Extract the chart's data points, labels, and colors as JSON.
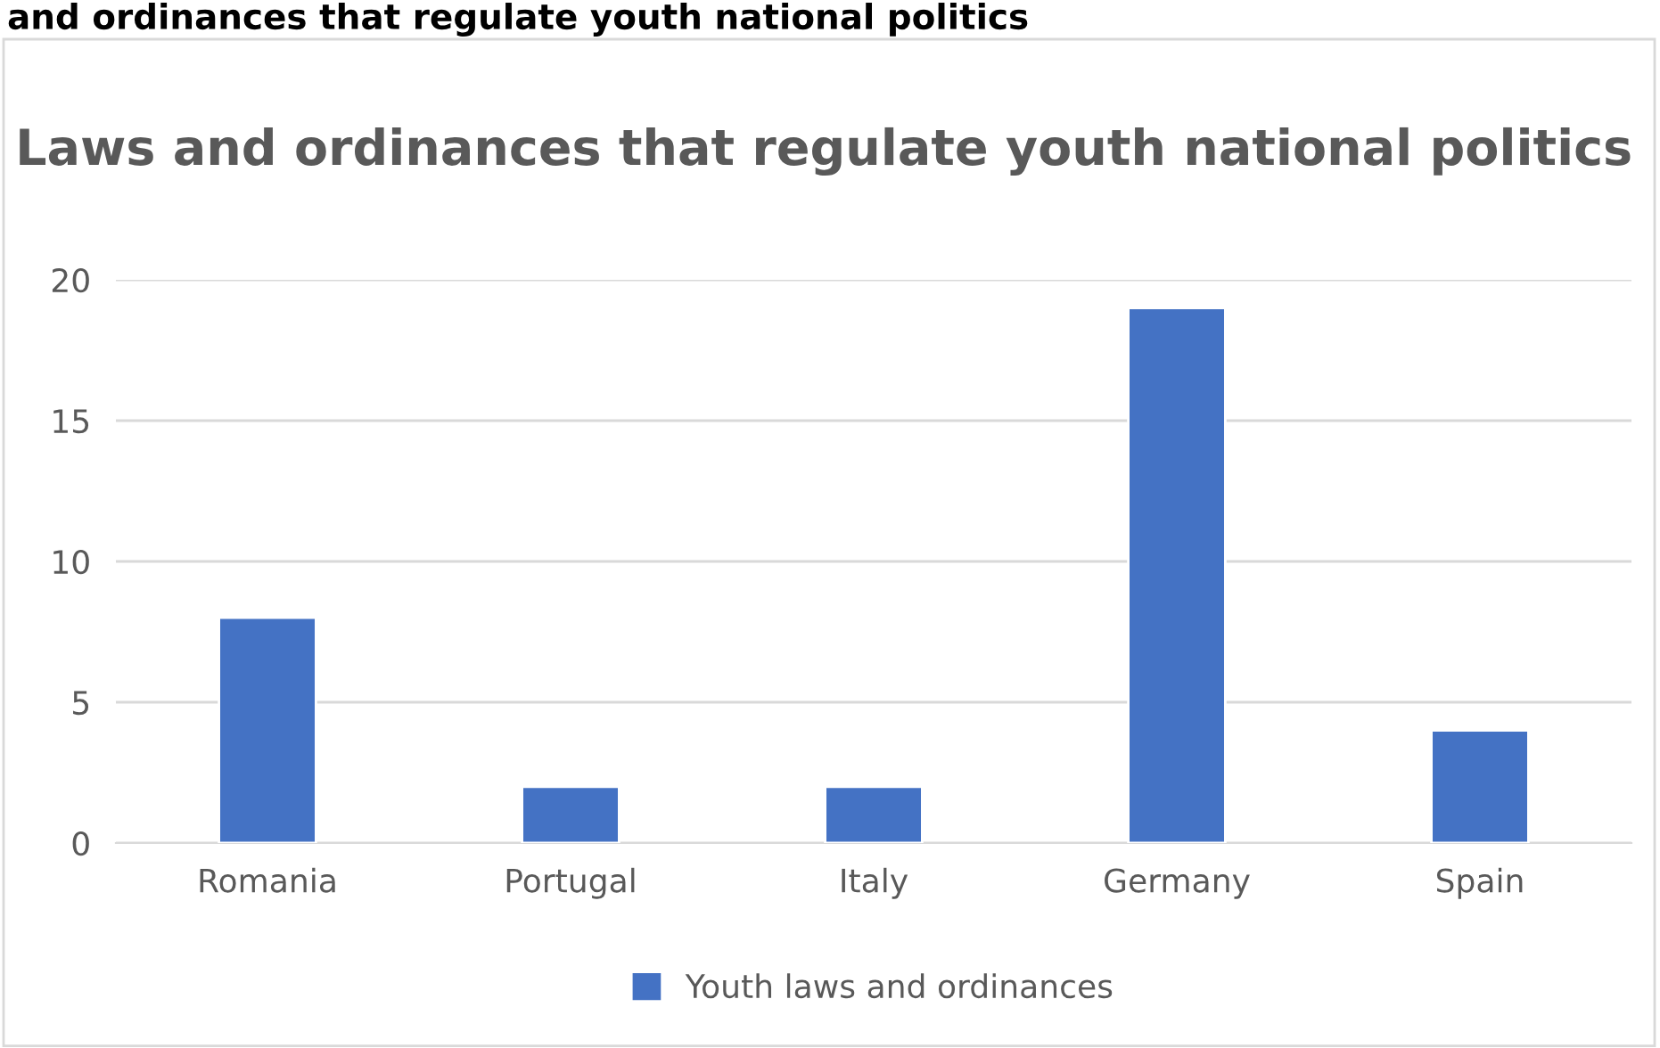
{
  "chart_data": {
    "type": "bar",
    "title": "Laws and ordinances that regulate youth national politics",
    "annotations": [
      "and ordinances that regulate youth national politics"
    ],
    "categories": [
      "Romania",
      "Portugal",
      "Italy",
      "Germany",
      "Spain"
    ],
    "series": [
      {
        "name": "Youth laws and ordinances",
        "color": "#4472c4",
        "values": [
          8,
          2,
          2,
          19,
          4
        ]
      }
    ],
    "ylim": [
      0,
      20
    ],
    "yticks": [
      0,
      5,
      10,
      15,
      20
    ],
    "grid": "y",
    "legend": "bottom"
  }
}
